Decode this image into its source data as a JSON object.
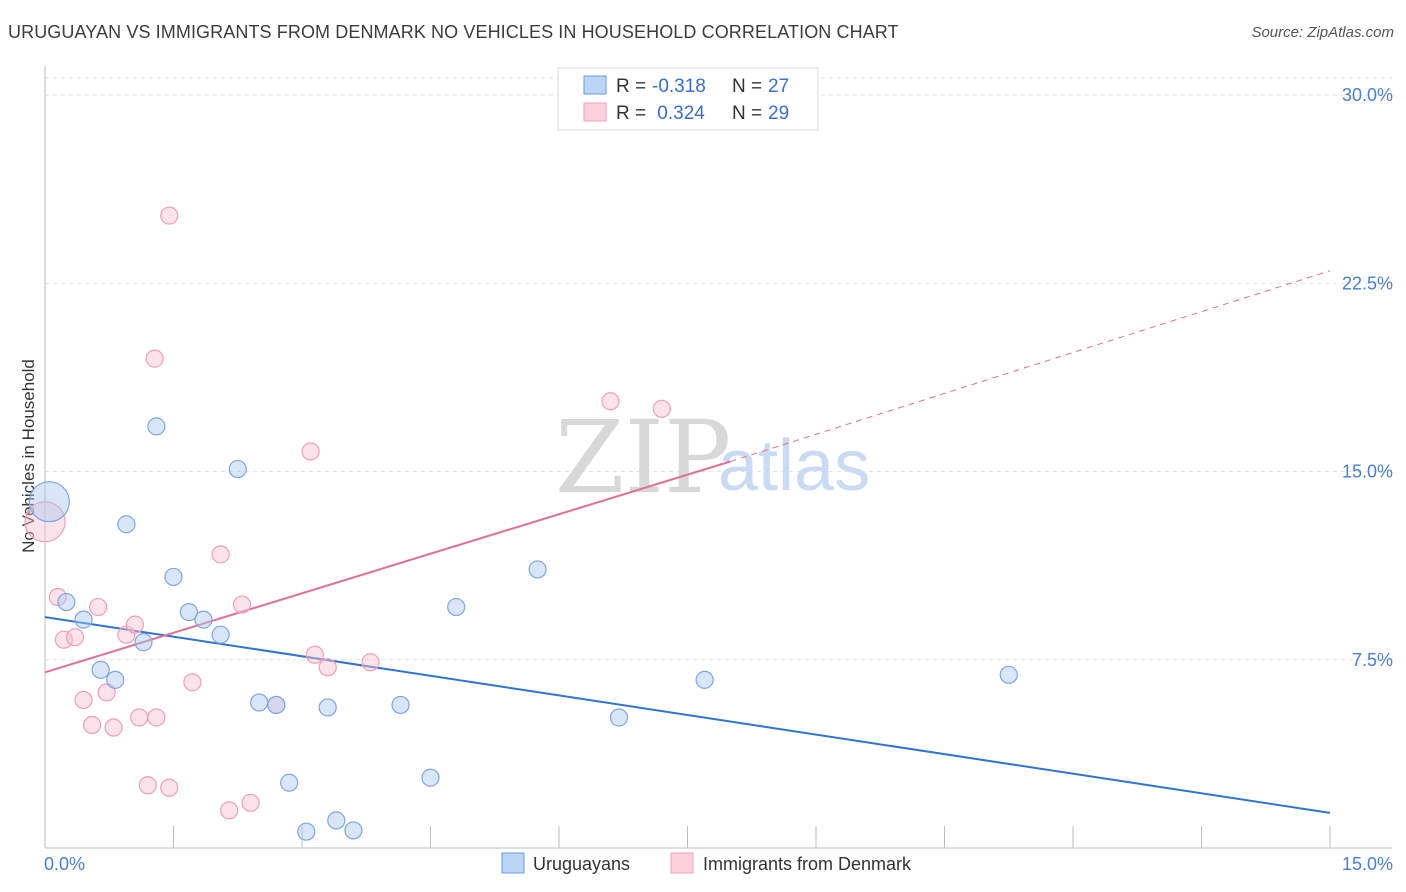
{
  "header": {
    "title": "URUGUAYAN VS IMMIGRANTS FROM DENMARK NO VEHICLES IN HOUSEHOLD CORRELATION CHART",
    "source": "Source: ZipAtlas.com"
  },
  "watermark": {
    "zip": "ZIP",
    "atlas": "atlas"
  },
  "legend": {
    "rows": [
      {
        "r_label": "R = ",
        "r_value": "-0.318",
        "n_label": "N = ",
        "n_value": "27"
      },
      {
        "r_label": "R = ",
        "r_value": " 0.324",
        "n_label": "N = ",
        "n_value": "29"
      }
    ]
  },
  "chart_data": {
    "type": "scatter",
    "title": "URUGUAYAN VS IMMIGRANTS FROM DENMARK NO VEHICLES IN HOUSEHOLD CORRELATION CHART",
    "xlabel": "",
    "ylabel": "No Vehicles in Household",
    "xlim": [
      0,
      15
    ],
    "ylim": [
      0,
      31
    ],
    "x_tick_labels": [
      "0.0%",
      "15.0%"
    ],
    "y_ticks": [
      7.5,
      15.0,
      22.5,
      30.0
    ],
    "y_tick_labels": [
      "7.5%",
      "15.0%",
      "22.5%",
      "30.0%"
    ],
    "grid": true,
    "legend_position": "top-center",
    "colors": {
      "uruguayans": "#6a9be0",
      "denmark": "#f0a0b8",
      "uruguayans_line": "#2f74d0",
      "denmark_line": "#e07095"
    },
    "series": [
      {
        "name": "Uruguayans",
        "points": [
          [
            0.05,
            13.8,
            1
          ],
          [
            0.25,
            9.8,
            0
          ],
          [
            0.45,
            9.1,
            0
          ],
          [
            0.95,
            12.9,
            0
          ],
          [
            1.3,
            16.8,
            0
          ],
          [
            1.5,
            10.8,
            0
          ],
          [
            1.68,
            9.4,
            0
          ],
          [
            1.85,
            9.1,
            0
          ],
          [
            2.05,
            8.5,
            0
          ],
          [
            2.25,
            15.1,
            0
          ],
          [
            1.15,
            8.2,
            0
          ],
          [
            0.65,
            7.1,
            0
          ],
          [
            0.82,
            6.7,
            0
          ],
          [
            2.5,
            5.8,
            0
          ],
          [
            2.7,
            5.7,
            0
          ],
          [
            3.3,
            5.6,
            0
          ],
          [
            4.15,
            5.7,
            0
          ],
          [
            4.8,
            9.6,
            0
          ],
          [
            5.75,
            11.1,
            0
          ],
          [
            6.7,
            5.2,
            0
          ],
          [
            7.7,
            6.7,
            0
          ],
          [
            11.25,
            6.9,
            0
          ],
          [
            2.85,
            2.6,
            0
          ],
          [
            4.5,
            2.8,
            0
          ],
          [
            3.4,
            1.1,
            0
          ],
          [
            3.05,
            0.65,
            0
          ],
          [
            3.6,
            0.7,
            0
          ]
        ],
        "trend": {
          "x": [
            0,
            15
          ],
          "y": [
            9.2,
            1.4
          ]
        }
      },
      {
        "name": "Immigrants from Denmark",
        "points": [
          [
            0.0,
            13.0,
            1
          ],
          [
            0.15,
            10.0,
            0
          ],
          [
            0.22,
            8.3,
            0
          ],
          [
            0.35,
            8.4,
            0
          ],
          [
            0.62,
            9.6,
            0
          ],
          [
            0.45,
            5.9,
            0
          ],
          [
            0.55,
            4.9,
            0
          ],
          [
            0.72,
            6.2,
            0
          ],
          [
            0.8,
            4.8,
            0
          ],
          [
            0.95,
            8.5,
            0
          ],
          [
            1.05,
            8.9,
            0
          ],
          [
            1.1,
            5.2,
            0
          ],
          [
            1.2,
            2.5,
            0
          ],
          [
            1.3,
            5.2,
            0
          ],
          [
            1.45,
            2.4,
            0
          ],
          [
            1.28,
            19.5,
            0
          ],
          [
            1.45,
            25.2,
            0
          ],
          [
            1.72,
            6.6,
            0
          ],
          [
            2.05,
            11.7,
            0
          ],
          [
            2.15,
            1.5,
            0
          ],
          [
            2.3,
            9.7,
            0
          ],
          [
            2.4,
            1.8,
            0
          ],
          [
            2.7,
            5.7,
            0
          ],
          [
            3.1,
            15.8,
            0
          ],
          [
            3.15,
            7.7,
            0
          ],
          [
            3.3,
            7.2,
            0
          ],
          [
            3.8,
            7.4,
            0
          ],
          [
            6.6,
            17.8,
            0
          ],
          [
            7.2,
            17.5,
            0
          ]
        ],
        "trend": {
          "x": [
            0,
            8.0
          ],
          "y": [
            7.0,
            15.4
          ]
        },
        "trend_extension": {
          "x": [
            8.0,
            15
          ],
          "y": [
            15.4,
            23.0
          ]
        }
      }
    ]
  },
  "bottom_legend": {
    "items": [
      "Uruguayans",
      "Immigrants from Denmark"
    ]
  }
}
